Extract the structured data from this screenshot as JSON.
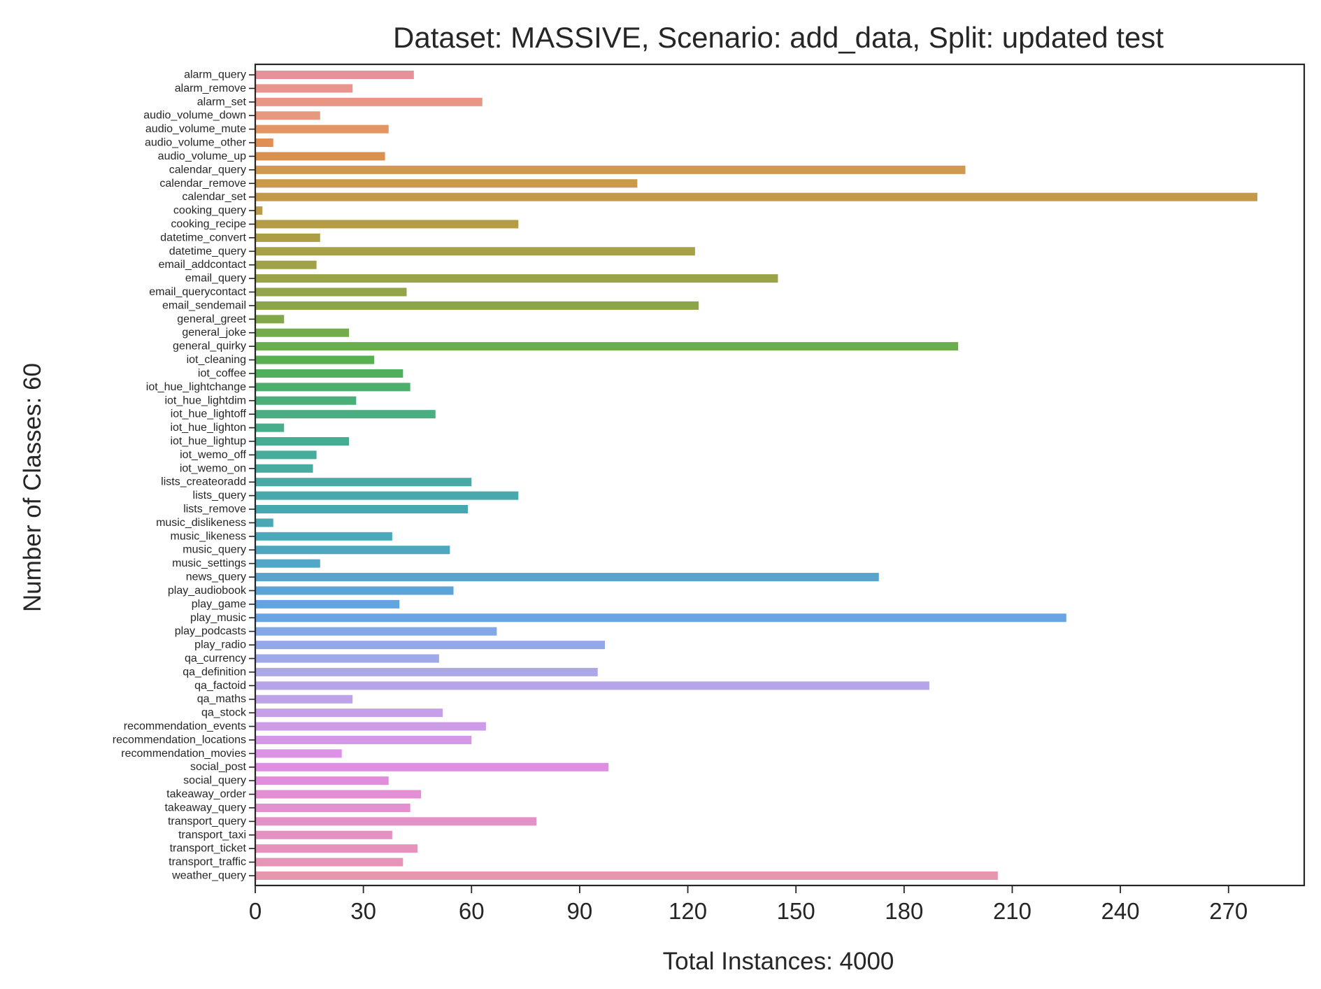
{
  "chart_data": {
    "type": "bar",
    "orientation": "horizontal",
    "title": "Dataset: MASSIVE, Scenario: add_data, Split: updated test",
    "xlabel": "Total Instances: 4000",
    "ylabel": "Number of Classes: 60",
    "xlim": [
      0,
      291
    ],
    "xticks": [
      0,
      30,
      60,
      90,
      120,
      150,
      180,
      210,
      240,
      270
    ],
    "grid": false,
    "categories": [
      "alarm_query",
      "alarm_remove",
      "alarm_set",
      "audio_volume_down",
      "audio_volume_mute",
      "audio_volume_other",
      "audio_volume_up",
      "calendar_query",
      "calendar_remove",
      "calendar_set",
      "cooking_query",
      "cooking_recipe",
      "datetime_convert",
      "datetime_query",
      "email_addcontact",
      "email_query",
      "email_querycontact",
      "email_sendemail",
      "general_greet",
      "general_joke",
      "general_quirky",
      "iot_cleaning",
      "iot_coffee",
      "iot_hue_lightchange",
      "iot_hue_lightdim",
      "iot_hue_lightoff",
      "iot_hue_lighton",
      "iot_hue_lightup",
      "iot_wemo_off",
      "iot_wemo_on",
      "lists_createoradd",
      "lists_query",
      "lists_remove",
      "music_dislikeness",
      "music_likeness",
      "music_query",
      "music_settings",
      "news_query",
      "play_audiobook",
      "play_game",
      "play_music",
      "play_podcasts",
      "play_radio",
      "qa_currency",
      "qa_definition",
      "qa_factoid",
      "qa_maths",
      "qa_stock",
      "recommendation_events",
      "recommendation_locations",
      "recommendation_movies",
      "social_post",
      "social_query",
      "takeaway_order",
      "takeaway_query",
      "transport_query",
      "transport_taxi",
      "transport_ticket",
      "transport_traffic",
      "weather_query"
    ],
    "values": [
      44,
      27,
      63,
      18,
      37,
      5,
      36,
      197,
      106,
      278,
      2,
      73,
      18,
      122,
      17,
      145,
      42,
      123,
      8,
      26,
      195,
      33,
      41,
      43,
      28,
      50,
      8,
      26,
      17,
      16,
      60,
      73,
      59,
      5,
      38,
      54,
      18,
      173,
      55,
      40,
      225,
      67,
      97,
      51,
      95,
      187,
      27,
      52,
      64,
      60,
      24,
      98,
      37,
      46,
      43,
      78,
      38,
      45,
      41,
      206
    ],
    "colors": [
      "#e8919b",
      "#e8948f",
      "#e89583",
      "#e8987c",
      "#e49564",
      "#e08e55",
      "#da914f",
      "#cf9a4d",
      "#c99a4a",
      "#c29a48",
      "#bb9b46",
      "#b59d45",
      "#ad9e45",
      "#a8a046",
      "#a1a147",
      "#9ba348",
      "#94a449",
      "#8ca54a",
      "#80a84b",
      "#74ac4c",
      "#6aad4f",
      "#58b051",
      "#4eb05c",
      "#4caf6c",
      "#4aaf78",
      "#49ae82",
      "#48ad8b",
      "#48ac92",
      "#47ac99",
      "#47ab9f",
      "#47aaa5",
      "#47a9aa",
      "#48a8af",
      "#49a8b4",
      "#4ba7ba",
      "#4ea6c0",
      "#52a6c7",
      "#57a5cf",
      "#5ca4d7",
      "#62a4df",
      "#6aa5e3",
      "#83a7e7",
      "#93a8e8",
      "#9fa8e8",
      "#aba7e8",
      "#b5a5e8",
      "#bea3e8",
      "#c69fe8",
      "#ce9be8",
      "#d597e8",
      "#dd92e8",
      "#e08de4",
      "#e28ddc",
      "#e38ed5",
      "#e48fce",
      "#e491c8",
      "#e592c2",
      "#e593bc",
      "#e595b6",
      "#e697ae"
    ]
  }
}
